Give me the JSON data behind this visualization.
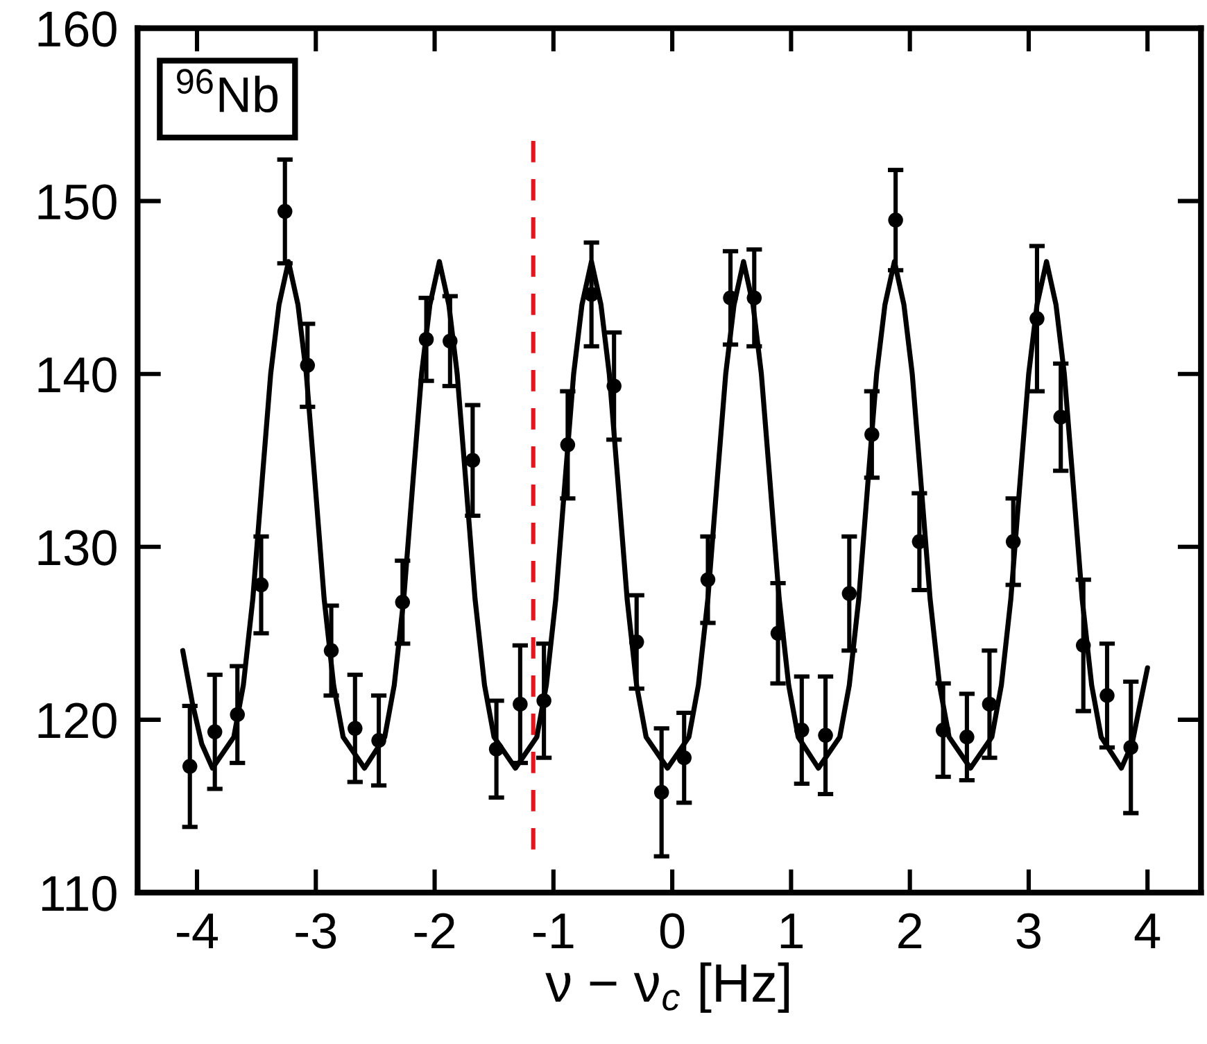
{
  "chart_data": {
    "type": "scatter",
    "xlabel": "ν − ν$_{c}$ [Hz]",
    "xlim": [
      -4.5,
      4.45
    ],
    "ylim": [
      110,
      160
    ],
    "xticks": [
      {
        "value": -4,
        "label": "-4"
      },
      {
        "value": -3,
        "label": "-3"
      },
      {
        "value": -2,
        "label": "-2"
      },
      {
        "value": -1,
        "label": "-1"
      },
      0,
      1,
      2,
      3,
      4
    ],
    "yticks": [
      110,
      120,
      130,
      140,
      150,
      160
    ],
    "grid": false,
    "legend": false,
    "annotations": [
      "$^{96}$Nb"
    ],
    "ref_lines": [
      {
        "axis": "x",
        "value": -1.17,
        "color": "#e8141b",
        "line_style": "dashed"
      }
    ],
    "series": [
      {
        "color": "#000000",
        "marker": "circle",
        "x": [
          -4.06,
          -3.85,
          -3.66,
          -3.46,
          -3.26,
          -3.07,
          -2.87,
          -2.67,
          -2.47,
          -2.27,
          -2.07,
          -1.87,
          -1.68,
          -1.48,
          -1.28,
          -1.08,
          -0.88,
          -0.68,
          -0.49,
          -0.3,
          -0.09,
          0.1,
          0.3,
          0.49,
          0.69,
          0.89,
          1.09,
          1.29,
          1.49,
          1.68,
          1.88,
          2.08,
          2.28,
          2.48,
          2.67,
          2.87,
          3.07,
          3.27,
          3.46,
          3.66,
          3.86
        ],
        "values": [
          117.3,
          119.3,
          120.3,
          127.8,
          149.4,
          140.5,
          124.0,
          119.5,
          118.8,
          126.8,
          142.0,
          141.9,
          135.0,
          118.3,
          120.9,
          121.1,
          135.9,
          144.6,
          139.3,
          124.5,
          115.8,
          117.8,
          128.1,
          144.4,
          144.4,
          125.0,
          119.4,
          119.1,
          127.3,
          136.5,
          148.9,
          130.3,
          119.4,
          119.0,
          120.9,
          130.3,
          143.2,
          137.5,
          124.3,
          121.4,
          118.4
        ],
        "errors": [
          3.5,
          3.3,
          2.8,
          2.8,
          3.0,
          2.4,
          2.6,
          3.1,
          2.6,
          2.4,
          2.4,
          2.6,
          3.2,
          2.8,
          3.4,
          3.3,
          3.1,
          3.0,
          3.1,
          2.7,
          3.7,
          2.6,
          2.5,
          2.7,
          2.8,
          2.9,
          3.1,
          3.4,
          3.3,
          2.5,
          2.9,
          2.8,
          2.7,
          2.5,
          3.1,
          2.5,
          4.2,
          3.1,
          3.8,
          3.0,
          3.8
        ]
      },
      {
        "type": "line",
        "color": "#000000",
        "marker": "none",
        "line_style": "solid",
        "x": [
          -4.12,
          -4.04,
          -3.96,
          -3.87,
          -3.69,
          -3.61,
          -3.53,
          -3.45,
          -3.38,
          -3.31,
          -3.23,
          -3.15,
          -3.08,
          -3.01,
          -2.93,
          -2.85,
          -2.77,
          -2.59,
          -2.42,
          -2.34,
          -2.26,
          -2.18,
          -2.11,
          -2.04,
          -1.96,
          -1.88,
          -1.81,
          -1.74,
          -1.66,
          -1.58,
          -1.5,
          -1.32,
          -1.14,
          -1.06,
          -0.98,
          -0.9,
          -0.83,
          -0.76,
          -0.68,
          -0.6,
          -0.53,
          -0.46,
          -0.38,
          -0.3,
          -0.22,
          -0.04,
          0.14,
          0.22,
          0.3,
          0.38,
          0.45,
          0.52,
          0.6,
          0.68,
          0.75,
          0.82,
          0.9,
          0.98,
          1.06,
          1.23,
          1.41,
          1.49,
          1.57,
          1.65,
          1.72,
          1.79,
          1.87,
          1.95,
          2.02,
          2.09,
          2.17,
          2.25,
          2.33,
          2.51,
          2.69,
          2.77,
          2.85,
          2.93,
          3.0,
          3.07,
          3.15,
          3.23,
          3.3,
          3.37,
          3.45,
          3.53,
          3.61,
          3.78,
          3.87,
          3.94,
          4.0
        ],
        "values": [
          124,
          121,
          118.6,
          117.2,
          119,
          122,
          127,
          134,
          140,
          144,
          146.5,
          144,
          140,
          134,
          127,
          122,
          119,
          117.2,
          119,
          122,
          127,
          134,
          140,
          144,
          146.5,
          144,
          140,
          134,
          127,
          122,
          119,
          117.2,
          119,
          122,
          127,
          134,
          140,
          144,
          146.5,
          144,
          140,
          134,
          127,
          122,
          119,
          117.2,
          119,
          122,
          127,
          134,
          140,
          144,
          146.5,
          144,
          140,
          134,
          127,
          122,
          119,
          117.2,
          119,
          122,
          127,
          134,
          140,
          144,
          146.5,
          144,
          140,
          134,
          127,
          122,
          119,
          117.2,
          119,
          122,
          127,
          134,
          140,
          144,
          146.5,
          144,
          140,
          134,
          127,
          122,
          119,
          117.2,
          118.6,
          121,
          123
        ]
      }
    ]
  }
}
